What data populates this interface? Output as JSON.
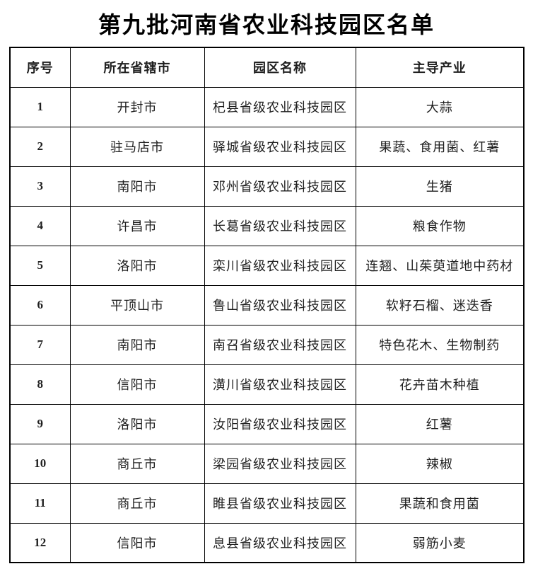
{
  "page_title": "第九批河南省农业科技园区名单",
  "table": {
    "headers": [
      "序号",
      "所在省辖市",
      "园区名称",
      "主导产业"
    ],
    "rows": [
      [
        "1",
        "开封市",
        "杞县省级农业科技园区",
        "大蒜"
      ],
      [
        "2",
        "驻马店市",
        "驿城省级农业科技园区",
        "果蔬、食用菌、红薯"
      ],
      [
        "3",
        "南阳市",
        "邓州省级农业科技园区",
        "生猪"
      ],
      [
        "4",
        "许昌市",
        "长葛省级农业科技园区",
        "粮食作物"
      ],
      [
        "5",
        "洛阳市",
        "栾川省级农业科技园区",
        "连翘、山茱萸道地中药材"
      ],
      [
        "6",
        "平顶山市",
        "鲁山省级农业科技园区",
        "软籽石榴、迷迭香"
      ],
      [
        "7",
        "南阳市",
        "南召省级农业科技园区",
        "特色花木、生物制药"
      ],
      [
        "8",
        "信阳市",
        "潢川省级农业科技园区",
        "花卉苗木种植"
      ],
      [
        "9",
        "洛阳市",
        "汝阳省级农业科技园区",
        "红薯"
      ],
      [
        "10",
        "商丘市",
        "梁园省级农业科技园区",
        "辣椒"
      ],
      [
        "11",
        "商丘市",
        "睢县省级农业科技园区",
        "果蔬和食用菌"
      ],
      [
        "12",
        "信阳市",
        "息县省级农业科技园区",
        "弱筋小麦"
      ]
    ]
  },
  "colors": {
    "border": "#000000",
    "text": "#1f1f1f",
    "background": "#ffffff",
    "title": "#000000"
  }
}
